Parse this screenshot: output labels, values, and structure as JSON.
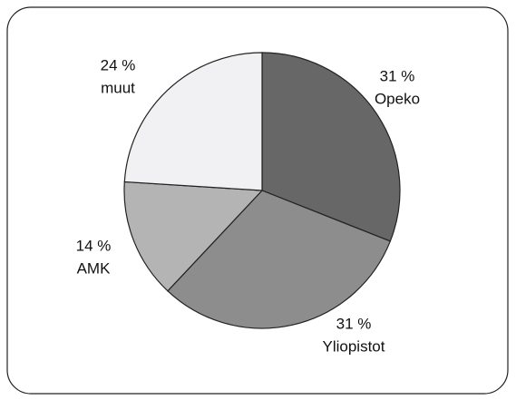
{
  "chart_data": {
    "type": "pie",
    "categories": [
      "Opeko",
      "Yliopistot",
      "AMK",
      "muut"
    ],
    "values": [
      31,
      31,
      14,
      24
    ],
    "value_labels": [
      "31 %",
      "31 %",
      "14 %",
      "24 %"
    ],
    "colors": [
      "#676767",
      "#8d8d8d",
      "#b4b4b4",
      "#f1f1f4"
    ]
  }
}
